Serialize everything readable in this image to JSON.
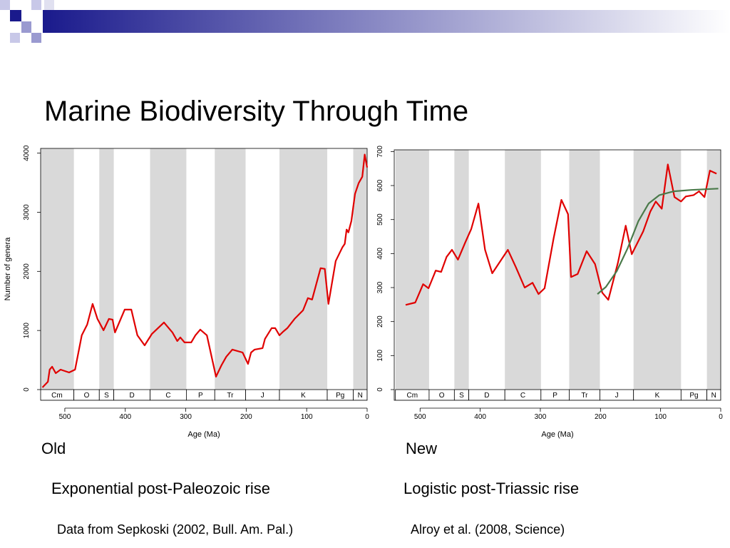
{
  "slide": {
    "title": "Marine Biodiversity Through Time",
    "left_heading": "Old",
    "right_heading": "New",
    "left_caption": "Exponential post-Paleozoic rise",
    "right_caption": "Logistic post-Triassic rise",
    "left_source": "Data from Sepkoski (2002, Bull. Am. Pal.)",
    "right_source": "Alroy et al. (2008, Science)"
  },
  "chart_data": [
    {
      "type": "line",
      "x_label": "Age (Ma)",
      "y_label": "Number of genera",
      "xlim": [
        540,
        0
      ],
      "xticks": [
        500,
        400,
        300,
        200,
        100,
        0
      ],
      "ylim": [
        0,
        4080
      ],
      "yticks": [
        0,
        1000,
        2000,
        3000,
        4000
      ],
      "periods": [
        {
          "name": "Cm",
          "start": 541,
          "end": 485,
          "shade": true
        },
        {
          "name": "O",
          "start": 485,
          "end": 443,
          "shade": false
        },
        {
          "name": "S",
          "start": 443,
          "end": 419,
          "shade": true
        },
        {
          "name": "D",
          "start": 419,
          "end": 359,
          "shade": false
        },
        {
          "name": "C",
          "start": 359,
          "end": 299,
          "shade": true
        },
        {
          "name": "P",
          "start": 299,
          "end": 252,
          "shade": false
        },
        {
          "name": "Tr",
          "start": 252,
          "end": 201,
          "shade": true
        },
        {
          "name": "J",
          "start": 201,
          "end": 145,
          "shade": false
        },
        {
          "name": "K",
          "start": 145,
          "end": 66,
          "shade": true
        },
        {
          "name": "Pg",
          "start": 66,
          "end": 23,
          "shade": false
        },
        {
          "name": "N",
          "start": 23,
          "end": 0,
          "shade": true
        }
      ],
      "series": [
        {
          "color": "#e00000",
          "x": [
            537,
            528,
            525,
            521,
            515,
            507,
            493,
            483,
            472,
            463,
            454,
            446,
            436,
            427,
            421,
            417,
            401,
            390,
            380,
            368,
            356,
            336,
            322,
            314,
            309,
            302,
            291,
            284,
            276,
            265,
            250,
            241,
            233,
            223,
            206,
            197,
            192,
            186,
            173,
            169,
            158,
            152,
            145,
            139,
            132,
            120,
            106,
            98,
            91,
            77,
            70,
            64,
            52,
            41,
            37,
            34,
            31,
            26,
            20,
            14,
            8,
            4,
            0
          ],
          "values": [
            36,
            133,
            338,
            387,
            278,
            338,
            290,
            338,
            918,
            1100,
            1450,
            1196,
            1003,
            1196,
            1184,
            967,
            1353,
            1353,
            918,
            749,
            943,
            1136,
            967,
            822,
            882,
            798,
            798,
            918,
            1015,
            918,
            218,
            411,
            556,
            677,
            628,
            435,
            628,
            677,
            701,
            858,
            1039,
            1039,
            918,
            979,
            1039,
            1196,
            1341,
            1547,
            1523,
            2054,
            2042,
            1450,
            2175,
            2405,
            2465,
            2707,
            2659,
            2852,
            3311,
            3492,
            3601,
            3976,
            3758
          ]
        }
      ]
    },
    {
      "type": "line",
      "x_label": "Age (Ma)",
      "xlim": [
        543,
        0
      ],
      "xticks": [
        500,
        400,
        300,
        200,
        100,
        0
      ],
      "ylim": [
        0,
        705
      ],
      "yticks": [
        0,
        100,
        200,
        300,
        400,
        500,
        600,
        700
      ],
      "periods": [
        {
          "name": "Cm",
          "start": 541,
          "end": 485,
          "shade": true
        },
        {
          "name": "O",
          "start": 485,
          "end": 443,
          "shade": false
        },
        {
          "name": "S",
          "start": 443,
          "end": 419,
          "shade": true
        },
        {
          "name": "D",
          "start": 419,
          "end": 359,
          "shade": false
        },
        {
          "name": "C",
          "start": 359,
          "end": 299,
          "shade": true
        },
        {
          "name": "P",
          "start": 299,
          "end": 252,
          "shade": false
        },
        {
          "name": "Tr",
          "start": 252,
          "end": 201,
          "shade": true
        },
        {
          "name": "J",
          "start": 201,
          "end": 145,
          "shade": false
        },
        {
          "name": "K",
          "start": 145,
          "end": 66,
          "shade": true
        },
        {
          "name": "Pg",
          "start": 66,
          "end": 23,
          "shade": false
        },
        {
          "name": "N",
          "start": 23,
          "end": 0,
          "shade": true
        }
      ],
      "series": [
        {
          "color": "#e00000",
          "x": [
            524,
            508,
            495,
            486,
            474,
            465,
            456,
            447,
            437,
            425,
            415,
            403,
            392,
            380,
            354,
            341,
            326,
            313,
            303,
            293,
            278,
            265,
            254,
            249,
            238,
            223,
            209,
            197,
            187,
            171,
            158,
            148,
            129,
            117,
            108,
            98,
            88,
            77,
            66,
            58,
            45,
            36,
            27,
            18,
            7
          ],
          "values": [
            249,
            256,
            310,
            298,
            350,
            346,
            390,
            411,
            382,
            432,
            472,
            547,
            411,
            342,
            411,
            361,
            300,
            314,
            281,
            298,
            444,
            558,
            516,
            331,
            340,
            407,
            369,
            285,
            264,
            373,
            482,
            398,
            465,
            524,
            553,
            532,
            662,
            566,
            553,
            568,
            572,
            583,
            566,
            644,
            635
          ]
        },
        {
          "color": "#4a7a4a",
          "x": [
            205,
            191,
            173,
            155,
            137,
            120,
            102,
            78,
            49,
            4
          ],
          "values": [
            281,
            302,
            348,
            415,
            495,
            547,
            572,
            583,
            587,
            591
          ]
        }
      ]
    }
  ]
}
